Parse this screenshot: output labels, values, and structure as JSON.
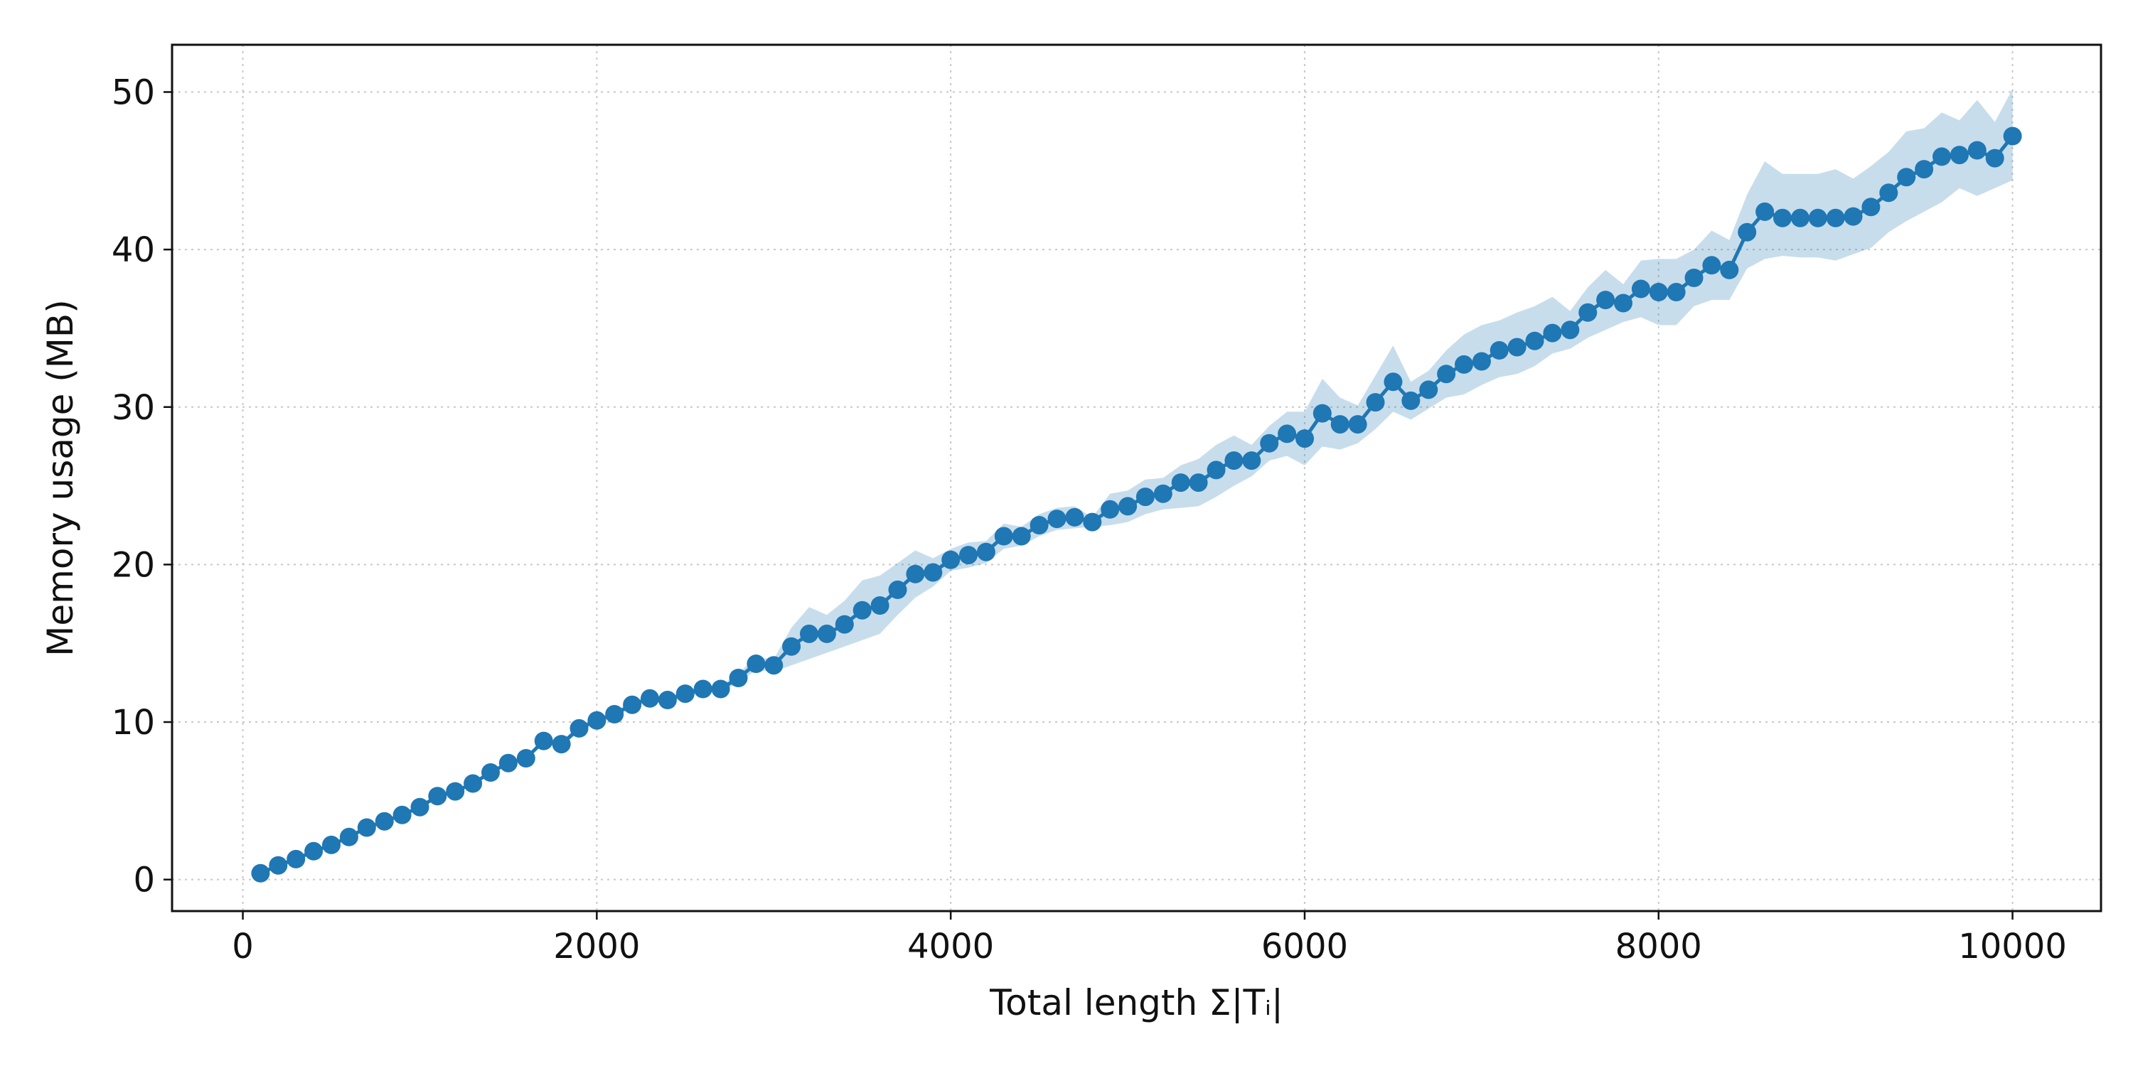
{
  "chart_data": {
    "type": "line",
    "title": "",
    "xlabel": "Total length Σ|Tᵢ|",
    "ylabel": "Memory usage (MB)",
    "xlim": [
      -400,
      10500
    ],
    "ylim": [
      -2.0,
      53.0
    ],
    "xticks": [
      0,
      2000,
      4000,
      6000,
      8000,
      10000
    ],
    "yticks": [
      0,
      10,
      20,
      30,
      40,
      50
    ],
    "grid": true,
    "legend": "none",
    "colors": {
      "series": "#1f77b4",
      "band": "#1f77b4"
    },
    "series": [
      {
        "x": [
          100,
          200,
          300,
          400,
          500,
          600,
          700,
          800,
          900,
          1000,
          1100,
          1200,
          1300,
          1400,
          1500,
          1600,
          1700,
          1800,
          1900,
          2000,
          2100,
          2200,
          2300,
          2400,
          2500,
          2600,
          2700,
          2800,
          2900,
          3000,
          3100,
          3200,
          3300,
          3400,
          3500,
          3600,
          3700,
          3800,
          3900,
          4000,
          4100,
          4200,
          4300,
          4400,
          4500,
          4600,
          4700,
          4800,
          4900,
          5000,
          5100,
          5200,
          5300,
          5400,
          5500,
          5600,
          5700,
          5800,
          5900,
          6000,
          6100,
          6200,
          6300,
          6400,
          6500,
          6600,
          6700,
          6800,
          6900,
          7000,
          7100,
          7200,
          7300,
          7400,
          7500,
          7600,
          7700,
          7800,
          7900,
          8000,
          8100,
          8200,
          8300,
          8400,
          8500,
          8600,
          8700,
          8800,
          8900,
          9000,
          9100,
          9200,
          9300,
          9400,
          9500,
          9600,
          9700,
          9800,
          9900,
          10000
        ],
        "values": [
          0.4,
          0.9,
          1.3,
          1.8,
          2.2,
          2.7,
          3.3,
          3.7,
          4.1,
          4.6,
          5.3,
          5.6,
          6.1,
          6.8,
          7.4,
          7.7,
          8.8,
          8.6,
          9.6,
          10.1,
          10.5,
          11.1,
          11.5,
          11.4,
          11.8,
          12.1,
          12.1,
          12.8,
          13.7,
          13.6,
          14.8,
          15.6,
          15.6,
          16.2,
          17.1,
          17.4,
          18.4,
          19.4,
          19.5,
          20.3,
          20.6,
          20.8,
          21.8,
          21.8,
          22.5,
          22.9,
          23.0,
          22.7,
          23.5,
          23.7,
          24.3,
          24.5,
          25.2,
          25.2,
          26.0,
          26.6,
          26.6,
          27.7,
          28.3,
          28.0,
          29.6,
          28.9,
          28.9,
          30.3,
          31.6,
          30.4,
          31.1,
          32.1,
          32.7,
          32.9,
          33.6,
          33.8,
          34.2,
          34.7,
          34.9,
          36.0,
          36.8,
          36.6,
          37.5,
          37.3,
          37.3,
          38.2,
          39.0,
          38.7,
          41.1,
          42.4,
          42.0,
          42.0,
          42.0,
          42.0,
          42.1,
          42.7,
          43.6,
          44.6,
          45.1,
          45.9,
          46.0,
          46.3,
          45.8,
          47.2
        ],
        "band_lower": [
          0.3,
          0.8,
          1.2,
          1.7,
          2.1,
          2.6,
          3.2,
          3.6,
          4.0,
          4.5,
          5.2,
          5.5,
          6.0,
          6.7,
          7.3,
          7.6,
          8.6,
          8.4,
          9.4,
          9.9,
          10.3,
          10.9,
          11.3,
          11.2,
          11.6,
          11.9,
          11.9,
          12.5,
          13.3,
          13.2,
          13.6,
          14.0,
          14.4,
          14.8,
          15.2,
          15.6,
          16.8,
          17.9,
          18.6,
          19.6,
          19.8,
          20.1,
          21.0,
          21.2,
          21.8,
          22.2,
          22.3,
          22.4,
          22.5,
          22.7,
          23.2,
          23.5,
          23.6,
          23.7,
          24.3,
          25.0,
          25.6,
          26.6,
          26.9,
          26.3,
          27.5,
          27.3,
          27.7,
          28.6,
          29.7,
          29.2,
          29.9,
          30.6,
          30.8,
          31.4,
          31.9,
          32.1,
          32.6,
          33.4,
          33.7,
          34.4,
          34.9,
          35.4,
          35.7,
          35.2,
          35.2,
          36.4,
          36.8,
          36.8,
          38.8,
          39.4,
          39.6,
          39.5,
          39.5,
          39.3,
          39.7,
          40.1,
          41.1,
          41.8,
          42.4,
          43.0,
          43.9,
          43.4,
          43.9,
          44.4
        ],
        "band_upper": [
          0.5,
          1.0,
          1.4,
          1.9,
          2.3,
          2.8,
          3.4,
          3.8,
          4.2,
          4.7,
          5.4,
          5.7,
          6.2,
          6.9,
          7.5,
          7.8,
          9.0,
          8.8,
          9.8,
          10.3,
          10.7,
          11.3,
          11.7,
          11.6,
          12.0,
          12.3,
          12.3,
          13.1,
          14.1,
          14.0,
          16.0,
          17.3,
          16.8,
          17.7,
          19.0,
          19.3,
          20.1,
          20.9,
          20.4,
          21.0,
          21.4,
          21.5,
          22.6,
          22.4,
          23.2,
          23.6,
          23.7,
          23.0,
          24.5,
          24.7,
          25.4,
          25.5,
          26.3,
          26.7,
          27.6,
          28.2,
          27.6,
          28.8,
          29.7,
          29.7,
          31.8,
          30.6,
          30.1,
          32.0,
          33.9,
          31.6,
          32.3,
          33.6,
          34.6,
          35.2,
          35.5,
          36.0,
          36.4,
          37.0,
          36.1,
          37.6,
          38.7,
          37.8,
          39.3,
          39.4,
          39.4,
          40.0,
          41.2,
          40.6,
          43.5,
          45.6,
          44.8,
          44.8,
          44.8,
          45.1,
          44.5,
          45.3,
          46.2,
          47.5,
          47.7,
          48.7,
          48.2,
          49.5,
          48.1,
          50.2
        ]
      }
    ]
  }
}
